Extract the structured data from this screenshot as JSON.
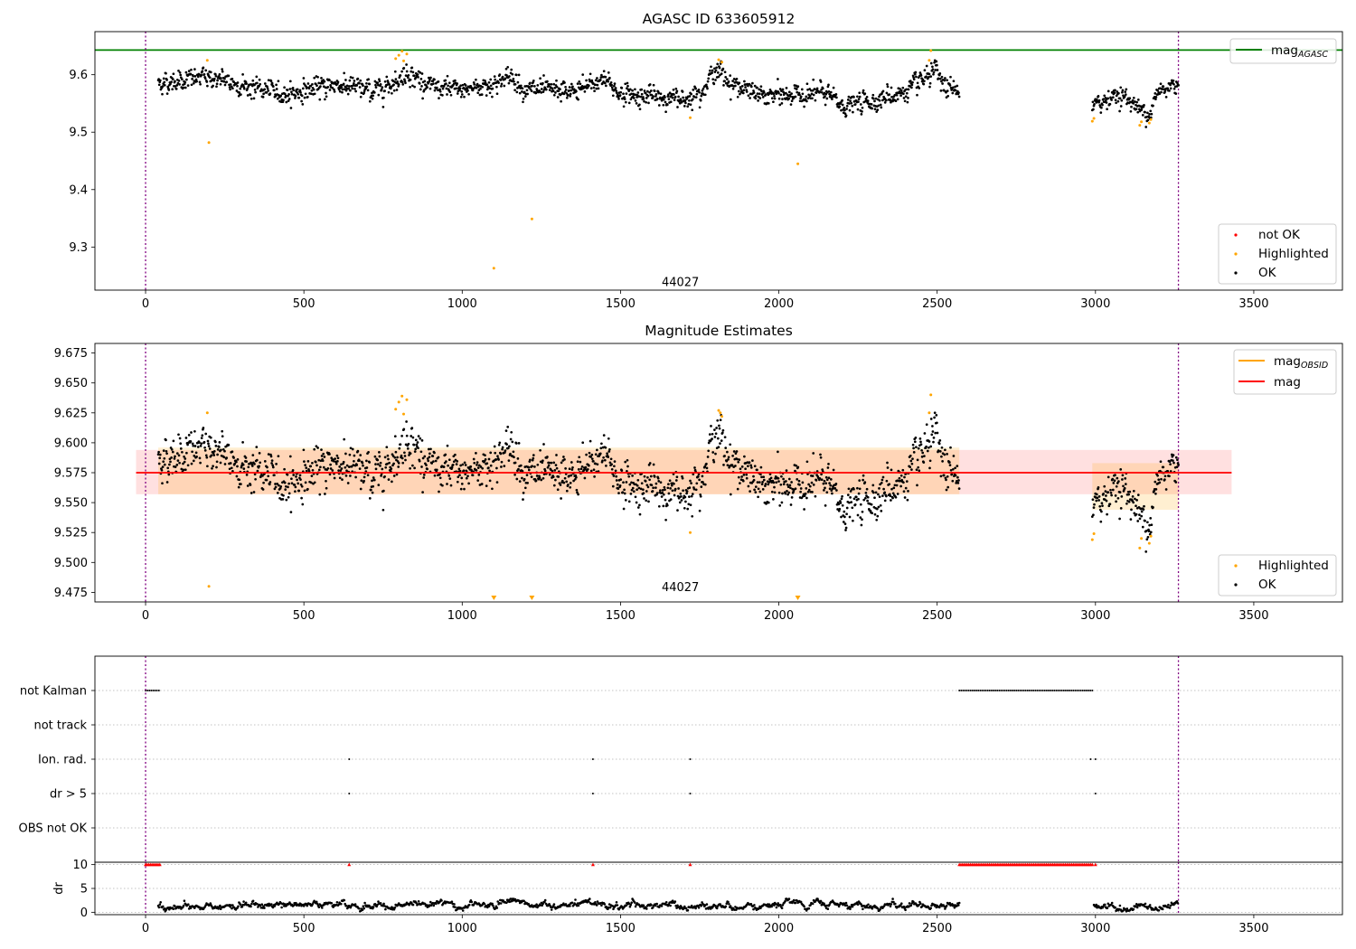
{
  "chart_data": [
    {
      "type": "scatter",
      "title": "AGASC ID 633605912",
      "xlim": [
        -160,
        3780
      ],
      "ylim": [
        9.225,
        9.675
      ],
      "xticks": [
        0,
        500,
        1000,
        1500,
        2000,
        2500,
        3000,
        3500
      ],
      "yticks": [
        9.3,
        9.4,
        9.5,
        9.6
      ],
      "ytick_labels": [
        "9.3",
        "9.4",
        "9.5",
        "9.6"
      ],
      "mag_agasc": 9.643,
      "vlines": [
        0,
        3262
      ],
      "annotation": {
        "text": "44027",
        "x": 1630,
        "y": 9.232
      },
      "legend_lines": [
        {
          "name": "mag",
          "sub": "AGASC",
          "color": "#008000"
        }
      ],
      "legend_points": [
        {
          "name": "not OK",
          "color": "#ff0000"
        },
        {
          "name": "Highlighted",
          "color": "#ffa500"
        },
        {
          "name": "OK",
          "color": "#000000"
        }
      ],
      "highlighted": [
        [
          195,
          9.625
        ],
        [
          200,
          9.482
        ],
        [
          790,
          9.628
        ],
        [
          800,
          9.634
        ],
        [
          810,
          9.641
        ],
        [
          815,
          9.624
        ],
        [
          825,
          9.636
        ],
        [
          1100,
          9.263
        ],
        [
          1220,
          9.349
        ],
        [
          1720,
          9.525
        ],
        [
          1810,
          9.626
        ],
        [
          1820,
          9.622
        ],
        [
          2060,
          9.445
        ],
        [
          2480,
          9.642
        ],
        [
          2475,
          9.625
        ],
        [
          2990,
          9.519
        ],
        [
          2995,
          9.524
        ],
        [
          3140,
          9.512
        ],
        [
          3145,
          9.518
        ],
        [
          3170,
          9.516
        ],
        [
          3175,
          9.522
        ]
      ],
      "segments": [
        {
          "x0": 40,
          "x1": 2570,
          "knots": [
            [
              40,
              9.585
            ],
            [
              200,
              9.596
            ],
            [
              300,
              9.582
            ],
            [
              450,
              9.566
            ],
            [
              600,
              9.584
            ],
            [
              720,
              9.571
            ],
            [
              800,
              9.592
            ],
            [
              830,
              9.605
            ],
            [
              900,
              9.578
            ],
            [
              1000,
              9.573
            ],
            [
              1100,
              9.585
            ],
            [
              1160,
              9.597
            ],
            [
              1200,
              9.574
            ],
            [
              1350,
              9.57
            ],
            [
              1450,
              9.592
            ],
            [
              1500,
              9.567
            ],
            [
              1600,
              9.562
            ],
            [
              1700,
              9.557
            ],
            [
              1760,
              9.575
            ],
            [
              1800,
              9.61
            ],
            [
              1850,
              9.585
            ],
            [
              1950,
              9.562
            ],
            [
              2050,
              9.565
            ],
            [
              2150,
              9.568
            ],
            [
              2200,
              9.545
            ],
            [
              2300,
              9.555
            ],
            [
              2400,
              9.57
            ],
            [
              2450,
              9.588
            ],
            [
              2500,
              9.605
            ],
            [
              2520,
              9.575
            ],
            [
              2570,
              9.575
            ]
          ]
        },
        {
          "x0": 2990,
          "x1": 3262,
          "knots": [
            [
              2990,
              9.54
            ],
            [
              3050,
              9.565
            ],
            [
              3100,
              9.56
            ],
            [
              3150,
              9.535
            ],
            [
              3175,
              9.538
            ],
            [
              3200,
              9.572
            ],
            [
              3262,
              9.585
            ]
          ]
        }
      ]
    },
    {
      "type": "scatter",
      "title": "Magnitude Estimates",
      "xlim": [
        -160,
        3780
      ],
      "ylim": [
        9.467,
        9.683
      ],
      "xticks": [
        0,
        500,
        1000,
        1500,
        2000,
        2500,
        3000,
        3500
      ],
      "yticks": [
        9.475,
        9.5,
        9.525,
        9.55,
        9.575,
        9.6,
        9.625,
        9.65,
        9.675
      ],
      "ytick_labels": [
        "9.475",
        "9.500",
        "9.525",
        "9.550",
        "9.575",
        "9.600",
        "9.625",
        "9.650",
        "9.675"
      ],
      "mag": 9.575,
      "mag_band": [
        9.557,
        9.594
      ],
      "band_x": [
        -30,
        3430
      ],
      "vlines": [
        0,
        3262
      ],
      "annotation": {
        "text": "44027",
        "x": 1630,
        "y": 9.476
      },
      "legend_lines": [
        {
          "name": "mag",
          "sub": "OBSID",
          "color": "#ffa500"
        },
        {
          "name": "mag",
          "sub": "",
          "color": "#ff0000"
        }
      ],
      "legend_points": [
        {
          "name": "Highlighted",
          "color": "#ffa500"
        },
        {
          "name": "OK",
          "color": "#000000"
        }
      ],
      "obsid_segments": [
        [
          40,
          2570,
          9.578
        ],
        [
          2990,
          3262,
          9.565
        ]
      ],
      "offscale_markers": [
        1100,
        1220,
        2060
      ],
      "highlighted": [
        [
          195,
          9.625
        ],
        [
          200,
          9.48
        ],
        [
          790,
          9.628
        ],
        [
          800,
          9.634
        ],
        [
          810,
          9.639
        ],
        [
          815,
          9.624
        ],
        [
          825,
          9.636
        ],
        [
          1720,
          9.525
        ],
        [
          1810,
          9.627
        ],
        [
          1815,
          9.625
        ],
        [
          1820,
          9.622
        ],
        [
          2480,
          9.64
        ],
        [
          2475,
          9.625
        ],
        [
          2990,
          9.519
        ],
        [
          2995,
          9.524
        ],
        [
          3140,
          9.512
        ],
        [
          3145,
          9.52
        ],
        [
          3170,
          9.516
        ],
        [
          3175,
          9.522
        ]
      ]
    },
    {
      "type": "scatter",
      "title": "",
      "xlim": [
        -160,
        3780
      ],
      "categories": [
        "not Kalman",
        "not track",
        "Ion. rad.",
        "dr > 5",
        "OBS not OK"
      ],
      "flags": {
        "not Kalman": [
          [
            0,
            45
          ],
          [
            2570,
            2990
          ]
        ],
        "Ion. rad.": [
          [
            643,
            643
          ],
          [
            1413,
            1413
          ],
          [
            1720,
            1720
          ],
          [
            2985,
            2985
          ],
          [
            3000,
            3000
          ]
        ],
        "dr > 5": [
          [
            643,
            643
          ],
          [
            1413,
            1413
          ],
          [
            1720,
            1720
          ],
          [
            3000,
            3000
          ]
        ]
      },
      "vlines": [
        0,
        3262
      ]
    },
    {
      "type": "scatter",
      "title": "",
      "ylabel": "dr",
      "xlim": [
        -160,
        3780
      ],
      "ylim": [
        -0.5,
        10.5
      ],
      "xticks": [
        0,
        500,
        1000,
        1500,
        2000,
        2500,
        3000,
        3500
      ],
      "yticks": [
        0,
        5,
        10
      ],
      "ytick_labels": [
        "0",
        "5",
        "10"
      ],
      "red_markers_y": 10,
      "red_markers": [
        [
          0,
          45
        ],
        [
          643,
          643
        ],
        [
          1413,
          1413
        ],
        [
          1720,
          1720
        ],
        [
          2570,
          2990
        ],
        [
          3000,
          3000
        ]
      ],
      "vlines": [
        0,
        3262
      ]
    }
  ]
}
